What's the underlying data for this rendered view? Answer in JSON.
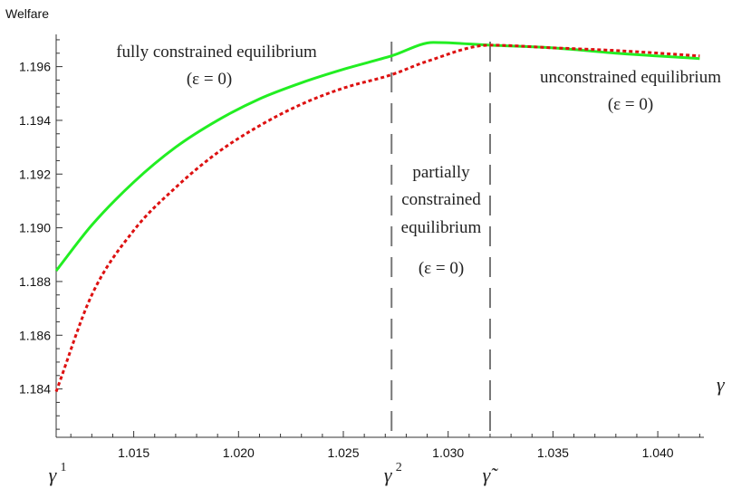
{
  "chart_data": {
    "type": "line",
    "ylabel": "Welfare",
    "xlabel": "γ",
    "xlim": [
      1.0113,
      1.0422
    ],
    "ylim": [
      1.1822,
      1.1972
    ],
    "xticks": [
      "1.015",
      "1.020",
      "1.025",
      "1.030",
      "1.035",
      "1.040"
    ],
    "yticks": [
      "1.184",
      "1.186",
      "1.188",
      "1.190",
      "1.192",
      "1.194",
      "1.196"
    ],
    "series": [
      {
        "color": "#22ee22",
        "style": "solid",
        "x": [
          1.0113,
          1.013,
          1.015,
          1.017,
          1.019,
          1.021,
          1.023,
          1.025,
          1.0273,
          1.0293,
          1.032,
          1.035,
          1.038,
          1.042
        ],
        "y": [
          1.1884,
          1.1901,
          1.1917,
          1.193,
          1.194,
          1.1948,
          1.1954,
          1.1959,
          1.1964,
          1.1969,
          1.1968,
          1.1967,
          1.1965,
          1.1963
        ]
      },
      {
        "color": "#dd1111",
        "style": "dotted",
        "x": [
          1.0113,
          1.013,
          1.015,
          1.017,
          1.019,
          1.021,
          1.023,
          1.025,
          1.0273,
          1.029,
          1.032,
          1.035,
          1.038,
          1.042
        ],
        "y": [
          1.1839,
          1.1875,
          1.1899,
          1.1915,
          1.1928,
          1.1938,
          1.1946,
          1.1952,
          1.1957,
          1.1962,
          1.1968,
          1.1967,
          1.1966,
          1.1964
        ]
      }
    ],
    "vlines": [
      1.0273,
      1.032
    ],
    "gamma_markers": [
      {
        "label": "γ",
        "sup": "1",
        "x": 1.0113
      },
      {
        "label": "γ",
        "sup": "2",
        "x": 1.0273
      },
      {
        "label": "γ̃",
        "sup": "",
        "x": 1.032
      }
    ],
    "annotations": [
      {
        "lines": [
          "fully constrained equilibrium",
          "(ε = 0)"
        ]
      },
      {
        "lines": [
          "partially",
          "constrained",
          "equilibrium",
          "(ε = 0)"
        ]
      },
      {
        "lines": [
          "unconstrained equilibrium",
          "(ε = 0)"
        ]
      }
    ]
  }
}
